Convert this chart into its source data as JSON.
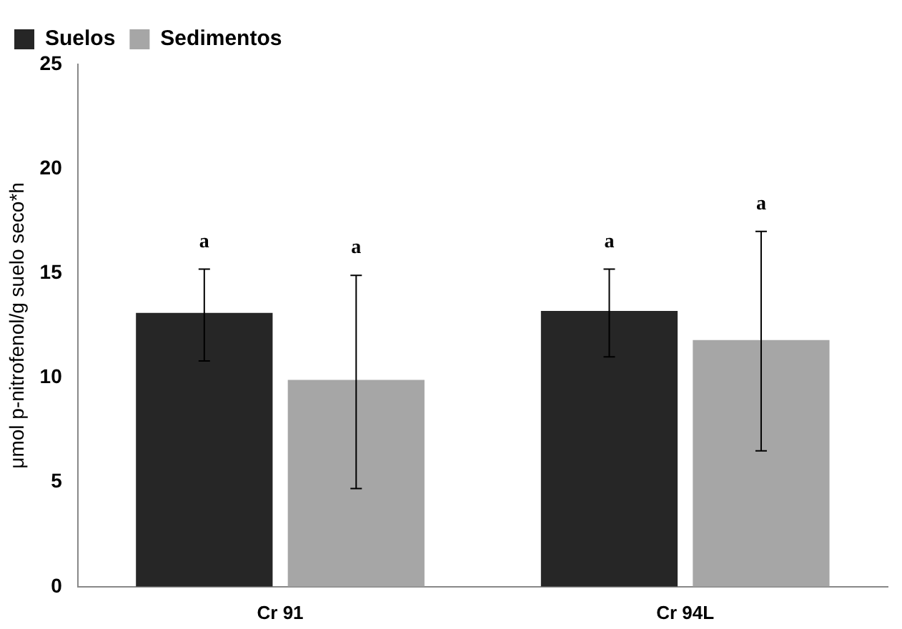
{
  "chart_data": {
    "type": "bar",
    "ylabel": "μmol p-nitrofenol/g suelo seco*h",
    "categories": [
      "Cr 91",
      "Cr 94L"
    ],
    "series": [
      {
        "name": "Suelos",
        "color": "#262626",
        "values": [
          13.1,
          13.2
        ],
        "errors": [
          [
            10.8,
            15.2
          ],
          [
            11.0,
            15.2
          ]
        ]
      },
      {
        "name": "Sedimentos",
        "color": "#a6a6a6",
        "values": [
          9.9,
          11.8
        ],
        "errors": [
          [
            4.7,
            14.9
          ],
          [
            6.5,
            17.0
          ]
        ]
      }
    ],
    "ylim": [
      0,
      25
    ],
    "yticks": [
      0,
      5,
      10,
      15,
      20,
      25
    ],
    "grid": false,
    "legend": "top left",
    "annotations": [
      "a",
      "a",
      "a",
      "a"
    ]
  }
}
